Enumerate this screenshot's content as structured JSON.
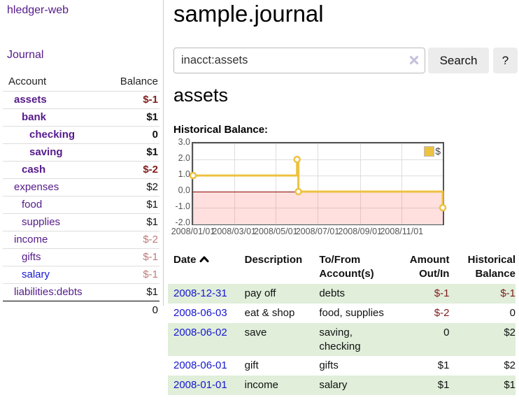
{
  "sidebar": {
    "app_title": "hledger-web",
    "nav_journal": "Journal",
    "accounts_table": {
      "headers": {
        "account": "Account",
        "balance": "Balance"
      },
      "rows": [
        {
          "name": "assets",
          "level": 1,
          "bold": true,
          "link": "purple",
          "balance": "$-1",
          "balance_style": "neg-strong"
        },
        {
          "name": "bank",
          "level": 2,
          "bold": true,
          "link": "purple",
          "balance": "$1",
          "balance_style": "pos"
        },
        {
          "name": "checking",
          "level": 3,
          "bold": true,
          "link": "purple",
          "balance": "0",
          "balance_style": "pos"
        },
        {
          "name": "saving",
          "level": 3,
          "bold": true,
          "link": "purple",
          "balance": "$1",
          "balance_style": "pos"
        },
        {
          "name": "cash",
          "level": 2,
          "bold": true,
          "link": "purple",
          "balance": "$-2",
          "balance_style": "neg-strong"
        },
        {
          "name": "expenses",
          "level": 1,
          "bold": false,
          "link": "purple",
          "balance": "$2",
          "balance_style": "pos"
        },
        {
          "name": "food",
          "level": 2,
          "bold": false,
          "link": "purple",
          "balance": "$1",
          "balance_style": "pos"
        },
        {
          "name": "supplies",
          "level": 2,
          "bold": false,
          "link": "purple",
          "balance": "$1",
          "balance_style": "pos"
        },
        {
          "name": "income",
          "level": 1,
          "bold": false,
          "link": "purple",
          "balance": "$-2",
          "balance_style": "neg-soft"
        },
        {
          "name": "gifts",
          "level": 2,
          "bold": false,
          "link": "purple",
          "balance": "$-1",
          "balance_style": "neg-soft"
        },
        {
          "name": "salary",
          "level": 2,
          "bold": false,
          "link": "blue",
          "balance": "$-1",
          "balance_style": "neg-soft"
        },
        {
          "name": "liabilities:debts",
          "level": 1,
          "bold": false,
          "link": "purple",
          "balance": "$1",
          "balance_style": "pos"
        }
      ],
      "total": "0"
    }
  },
  "main": {
    "title": "sample.journal",
    "search": {
      "value": "inacct:assets",
      "search_button": "Search",
      "help_button": "?"
    },
    "account_heading": "assets",
    "chart_label": "Historical Balance:",
    "register_table": {
      "headers": {
        "date": "Date",
        "description": "Description",
        "tofrom": "To/From Account(s)",
        "amount": "Amount Out/In",
        "balance": "Historical Balance"
      },
      "rows": [
        {
          "date": "2008-12-31",
          "description": "pay off",
          "accounts": "debts",
          "amount": "$-1",
          "amount_negative": true,
          "balance": "$-1",
          "balance_negative": true
        },
        {
          "date": "2008-06-03",
          "description": "eat & shop",
          "accounts": "food, supplies",
          "amount": "$-2",
          "amount_negative": true,
          "balance": "0",
          "balance_negative": false
        },
        {
          "date": "2008-06-02",
          "description": "save",
          "accounts": "saving, checking",
          "amount": "0",
          "amount_negative": false,
          "balance": "$2",
          "balance_negative": false
        },
        {
          "date": "2008-06-01",
          "description": "gift",
          "accounts": "gifts",
          "amount": "$1",
          "amount_negative": false,
          "balance": "$2",
          "balance_negative": false
        },
        {
          "date": "2008-01-01",
          "description": "income",
          "accounts": "salary",
          "amount": "$1",
          "amount_negative": false,
          "balance": "$1",
          "balance_negative": false
        }
      ]
    }
  },
  "chart_data": {
    "type": "line",
    "title": "Historical Balance",
    "legend": "$",
    "step": true,
    "x_range": [
      "2008-01-01",
      "2008-12-31"
    ],
    "ylim": [
      -2,
      3
    ],
    "y_ticks": [
      "3.0",
      "2.0",
      "1.0",
      "0.0",
      "-1.0",
      "-2.0"
    ],
    "x_ticks": [
      "2008/01/01",
      "2008/03/01",
      "2008/05/01",
      "2008/07/01",
      "2008/09/01",
      "2008/11/01"
    ],
    "series": [
      {
        "name": "$",
        "color": "#edc240",
        "points": [
          [
            "2008-01-01",
            1
          ],
          [
            "2008-06-01",
            2
          ],
          [
            "2008-06-03",
            0
          ],
          [
            "2008-12-31",
            -1
          ]
        ]
      }
    ],
    "zero_line_color": "#8b0000",
    "negative_region": true
  },
  "colors": {
    "accent_gold": "#edc240",
    "link_purple": "#551a8b",
    "link_blue": "#1616d1",
    "negative_strong": "#7f1c1c",
    "negative_soft": "#bd7b7b",
    "row_stripe_green": "#e0eeda",
    "chart_border": "#545454",
    "negative_zone_pink": "#fcdedb"
  }
}
